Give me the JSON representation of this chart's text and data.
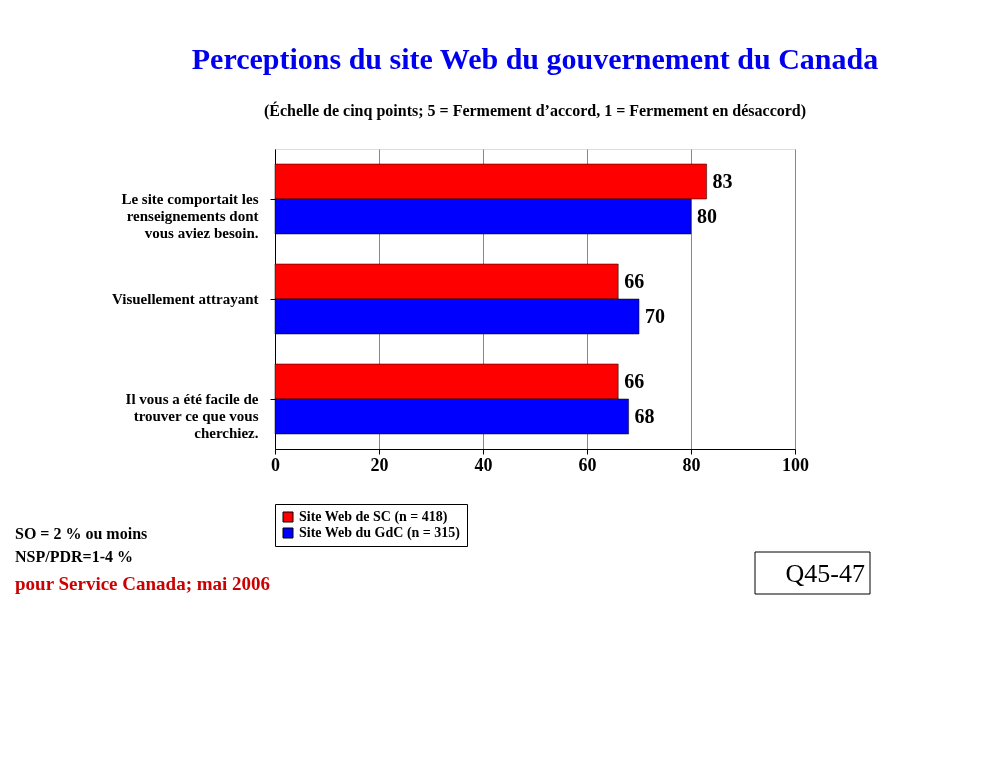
{
  "chart_data": {
    "type": "bar",
    "orientation": "horizontal",
    "title": "Perceptions du site Web du gouvernement du Canada",
    "subtitle": "(Échelle de cinq points; 5 = Fermement d’accord, 1 = Fermement en désaccord)",
    "categories": [
      "Le site comportait les\nrenseignements dont\nvous aviez besoin.",
      "Visuellement attrayant",
      "Il vous a été facile de\ntrouver ce que vous\ncherchiez."
    ],
    "series": [
      {
        "name": "Site Web de SC (n = 418)",
        "color": "#ff0000",
        "values": [
          83,
          66,
          66
        ]
      },
      {
        "name": "Site Web du GdC (n = 315)",
        "color": "#0000ff",
        "values": [
          80,
          70,
          68
        ]
      }
    ],
    "xlim": [
      0,
      100
    ],
    "xticks": [
      0,
      20,
      40,
      60,
      80,
      100
    ],
    "grid": "x",
    "legend": "bottom",
    "data_labels": true,
    "annotations": [
      "SO = 2 % ou moins",
      "NSP/PDR=1-4 %",
      "pour Service Canada; mai 2006",
      "Q45-47"
    ]
  }
}
